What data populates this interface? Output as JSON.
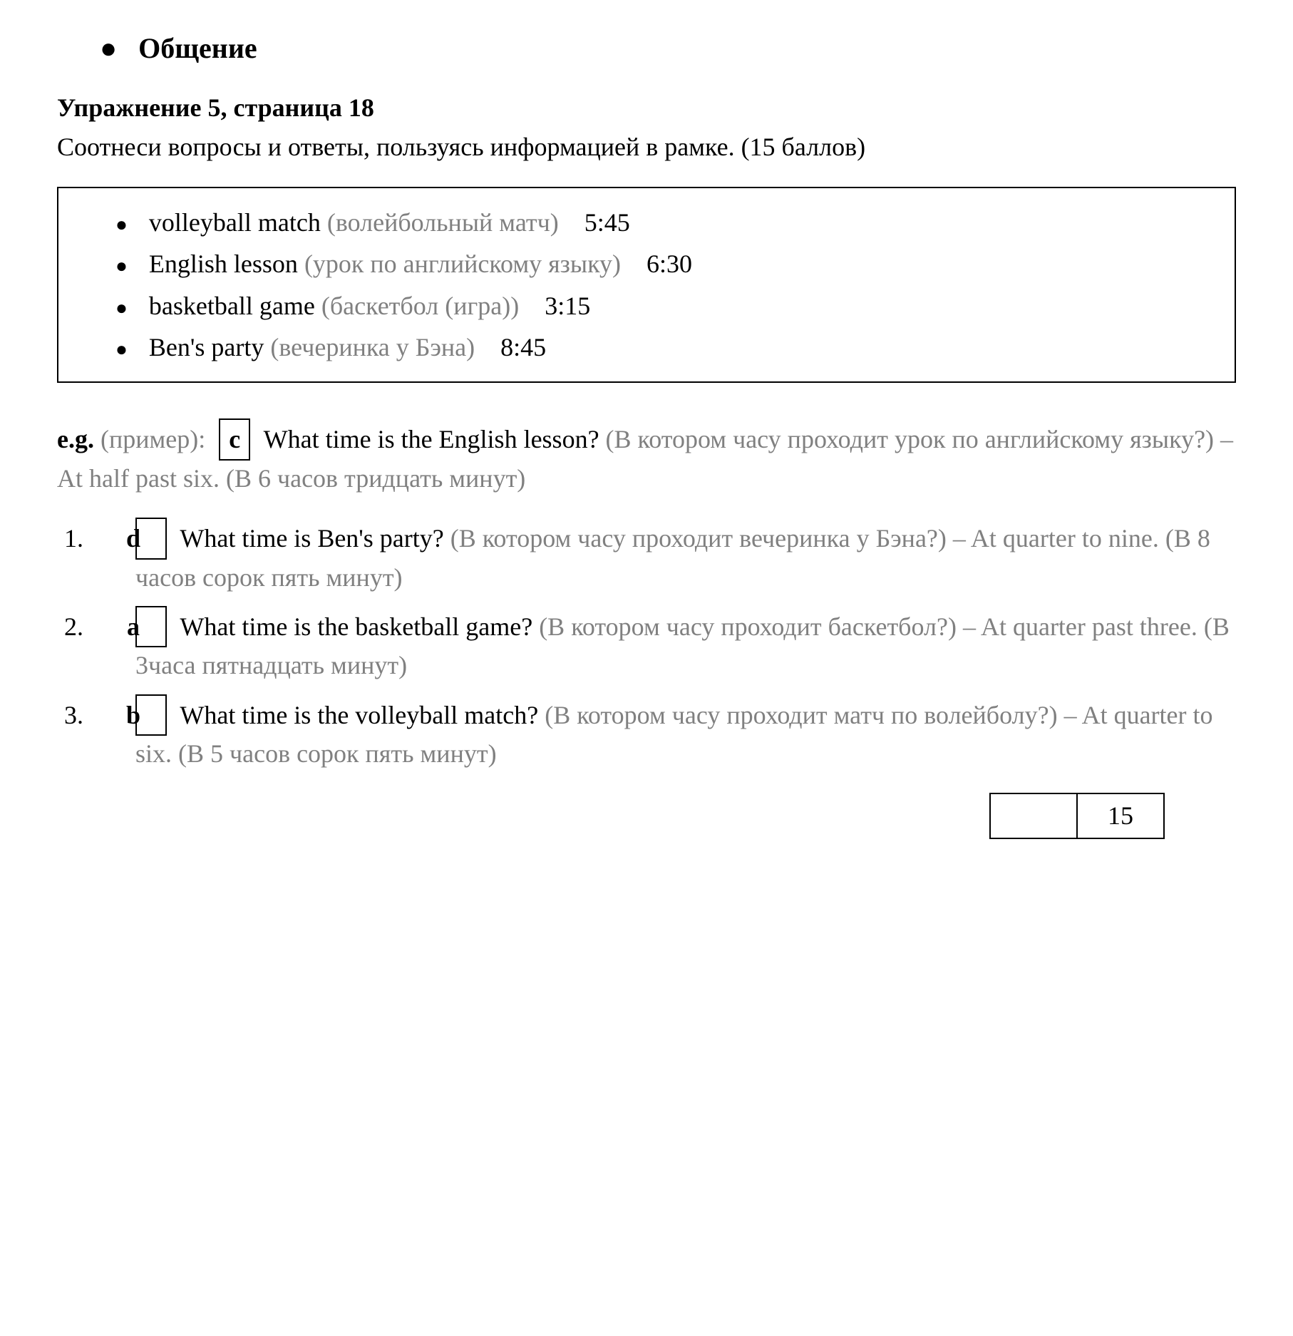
{
  "heading": "Общение",
  "exercise": {
    "title_bold": "Упражнение 5, страница 18",
    "instruction": "Соотнеси вопросы и ответы, пользуясь информацией в рамке. (15 баллов)"
  },
  "box_items": [
    {
      "english": "volleyball match",
      "russian": "(волейбольный матч)",
      "time": "5:45"
    },
    {
      "english": "English lesson",
      "russian": "(урок по английскому языку)",
      "time": "6:30"
    },
    {
      "english": "basketball game",
      "russian": "(баскетбол (игра))",
      "time": "3:15"
    },
    {
      "english": "Ben's party",
      "russian": "(вечеринка у Бэна)",
      "time": "8:45"
    }
  ],
  "example": {
    "label": "e.g.",
    "label_ru": "(пример):",
    "letter": "c",
    "question": "What time is the English lesson?",
    "question_ru": "(В котором часу проходит урок по английскому языку?)",
    "answer": "– At half past six.",
    "answer_ru": "(В 6 часов тридцать минут)"
  },
  "items": [
    {
      "number": "1.",
      "letter": "d",
      "question": "What time is Ben's party?",
      "question_ru": "(В котором часу проходит вечеринка у Бэна?)",
      "answer": "– At quarter to nine.",
      "answer_ru": "(В 8 часов сорок пять минут)"
    },
    {
      "number": "2.",
      "letter": "a",
      "question": "What time is the basketball game?",
      "question_ru": "(В котором часу проходит баскетбол?)",
      "answer": "– At quarter past three.",
      "answer_ru": "(В 3часа пятнадцать минут)"
    },
    {
      "number": "3.",
      "letter": "b",
      "question": "What time is the volleyball match?",
      "question_ru": "(В котором часу проходит матч по волейболу?)",
      "answer": "– At quarter to six.",
      "answer_ru": "(В 5 часов сорок пять минут)"
    }
  ],
  "score": "15",
  "colors": {
    "text": "#000000",
    "gray": "#808080",
    "background": "#ffffff",
    "border": "#000000"
  },
  "fonts": {
    "body_size": 36,
    "heading_size": 40,
    "family": "Times New Roman"
  }
}
